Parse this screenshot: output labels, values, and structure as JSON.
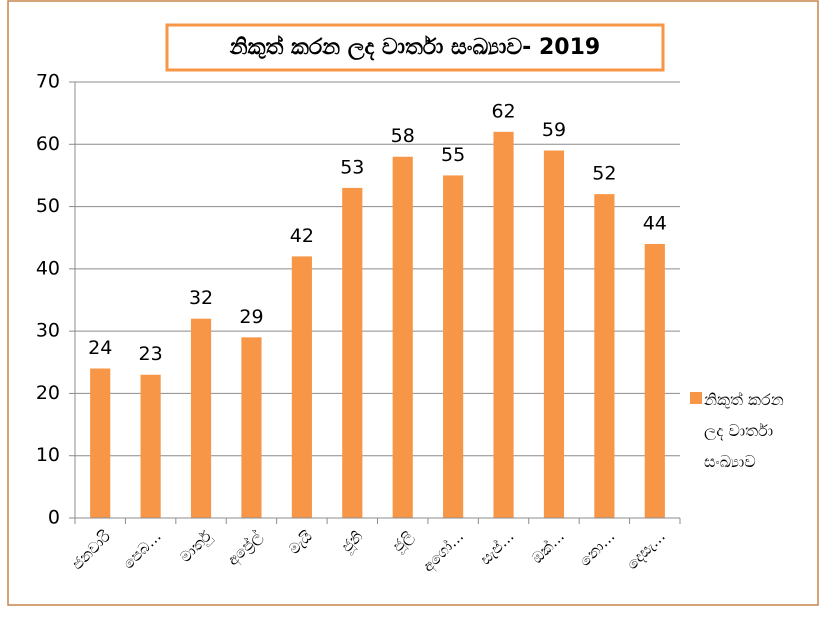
{
  "chart_data": {
    "type": "bar",
    "title": "නිකුත් කරන ලද වාර්තා සංඛ්‍යාව- 2019",
    "categories": [
      "ජනවාරි",
      "පෙබ…",
      "මාර්තු",
      "අප්‍රේල්",
      "මැයි",
      "ජූනි",
      "ජූලි",
      "අගෝ…",
      "සැප්…",
      "ඔක්…",
      "නො…",
      "දෙසැ…"
    ],
    "series": [
      {
        "name": "නිකුත් කරන ලද වාර්තා සංඛ්‍යාව",
        "color": "#f79646",
        "values": [
          24,
          23,
          32,
          29,
          42,
          53,
          58,
          55,
          62,
          59,
          52,
          44
        ]
      }
    ],
    "ylim": [
      0,
      70
    ],
    "yticks": [
      0,
      10,
      20,
      30,
      40,
      50,
      60,
      70
    ],
    "grid": true,
    "legend": "right"
  }
}
